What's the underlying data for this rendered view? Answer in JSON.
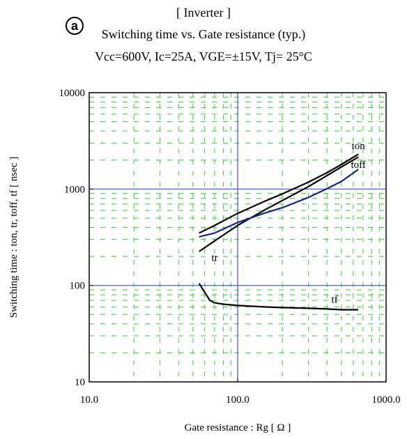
{
  "marker": "a",
  "title": "[ Inverter ]",
  "subtitle": "Switching time  vs.  Gate resistance  (typ.)",
  "conditions": "Vcc=600V, Ic=25A, VGE=±15V, Tj= 25°C",
  "chart_data": {
    "type": "line",
    "xscale": "log",
    "yscale": "log",
    "xlim": [
      10,
      1000
    ],
    "ylim": [
      10,
      10000
    ],
    "xlabel": "Gate resistance  :  Rg  [ Ω ]",
    "ylabel": "Switching time  :  ton, tr, toff, tf  [ nsec ]",
    "x_tick_labels": [
      "10.0",
      "100.0",
      "1000.0"
    ],
    "y_tick_labels": [
      "10",
      "100",
      "1000",
      "10000"
    ],
    "grid": "major: blue solid; minor: green dashed",
    "colors": {
      "major_grid": "#3f51c8",
      "minor_grid": "#33cc33",
      "toff": "#1a237e",
      "others": "#000000"
    },
    "series": [
      {
        "name": "ton",
        "x": [
          55,
          70,
          100,
          150,
          200,
          300,
          400,
          500,
          650
        ],
        "y": [
          350,
          420,
          560,
          740,
          890,
          1180,
          1480,
          1800,
          2300
        ]
      },
      {
        "name": "tr",
        "x": [
          55,
          70,
          100,
          150,
          200,
          300,
          400,
          500,
          650
        ],
        "y": [
          225,
          290,
          420,
          600,
          760,
          1060,
          1380,
          1700,
          2150
        ]
      },
      {
        "name": "toff",
        "x": [
          55,
          70,
          100,
          150,
          200,
          300,
          400,
          500,
          650
        ],
        "y": [
          320,
          350,
          450,
          560,
          640,
          820,
          1010,
          1200,
          1600
        ]
      },
      {
        "name": "tf",
        "x": [
          55,
          60,
          65,
          70,
          80,
          100,
          150,
          200,
          300,
          400,
          500,
          650
        ],
        "y": [
          105,
          85,
          70,
          66,
          64,
          62,
          60,
          59,
          58,
          57,
          56,
          56
        ]
      }
    ],
    "label_positions": {
      "ton": {
        "x": 650,
        "y": 2600
      },
      "toff": {
        "x": 650,
        "y": 1650
      },
      "tr": {
        "x": 70,
        "y": 180
      },
      "tf": {
        "x": 450,
        "y": 66
      }
    }
  }
}
